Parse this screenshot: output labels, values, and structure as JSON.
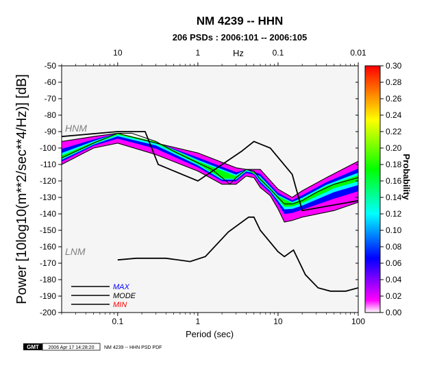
{
  "chart_data": {
    "type": "heatmap",
    "title": "NM 4239 -- HHN",
    "subtitle": "206 PSDs : 2006:101 -- 2006:105",
    "xlabel": "Period (sec)",
    "x_top_label": "Hz",
    "ylabel": "Power [10log10(m**2/sec**4/Hz)] [dB]",
    "colorbar_label": "Probability",
    "x_scale": "log",
    "xlim": [
      0.02,
      100
    ],
    "ylim": [
      -200,
      -50
    ],
    "x_ticks": [
      {
        "value": 0.1,
        "label": "0.1"
      },
      {
        "value": 1,
        "label": "1"
      },
      {
        "value": 10,
        "label": "10"
      },
      {
        "value": 100,
        "label": "100"
      }
    ],
    "x_top_ticks": [
      {
        "value": 0.1,
        "label": "10"
      },
      {
        "value": 1,
        "label": "1"
      },
      {
        "value": 10,
        "label": "0.1"
      },
      {
        "value": 100,
        "label": "0.01"
      }
    ],
    "y_ticks": [
      {
        "value": -50,
        "label": "-50"
      },
      {
        "value": -60,
        "label": "-60"
      },
      {
        "value": -70,
        "label": "-70"
      },
      {
        "value": -80,
        "label": "-80"
      },
      {
        "value": -90,
        "label": "-90"
      },
      {
        "value": -100,
        "label": "-100"
      },
      {
        "value": -110,
        "label": "-110"
      },
      {
        "value": -120,
        "label": "-120"
      },
      {
        "value": -130,
        "label": "-130"
      },
      {
        "value": -140,
        "label": "-140"
      },
      {
        "value": -150,
        "label": "-150"
      },
      {
        "value": -160,
        "label": "-160"
      },
      {
        "value": -170,
        "label": "-170"
      },
      {
        "value": -180,
        "label": "-180"
      },
      {
        "value": -190,
        "label": "-190"
      },
      {
        "value": -200,
        "label": "-200"
      }
    ],
    "colorbar": {
      "range": [
        0,
        0.3
      ],
      "ticks": [
        {
          "value": 0.3,
          "label": "0.30"
        },
        {
          "value": 0.28,
          "label": "0.28"
        },
        {
          "value": 0.26,
          "label": "0.26"
        },
        {
          "value": 0.24,
          "label": "0.24"
        },
        {
          "value": 0.22,
          "label": "0.22"
        },
        {
          "value": 0.2,
          "label": "0.20"
        },
        {
          "value": 0.18,
          "label": "0.18"
        },
        {
          "value": 0.16,
          "label": "0.16"
        },
        {
          "value": 0.14,
          "label": "0.14"
        },
        {
          "value": 0.12,
          "label": "0.12"
        },
        {
          "value": 0.1,
          "label": "0.10"
        },
        {
          "value": 0.08,
          "label": "0.08"
        },
        {
          "value": 0.06,
          "label": "0.06"
        },
        {
          "value": 0.04,
          "label": "0.04"
        },
        {
          "value": 0.02,
          "label": "0.02"
        },
        {
          "value": 0.0,
          "label": "0.00"
        }
      ],
      "colors": [
        "#ffffff",
        "#ff00ff",
        "#0000ff",
        "#00ffff",
        "#00ff00",
        "#ffff00",
        "#ff0000"
      ]
    },
    "series": [
      {
        "name": "MAX",
        "color": "#000000",
        "x": [
          0.02,
          0.05,
          0.1,
          0.3,
          1.0,
          3.0,
          4.0,
          6.0,
          10.0,
          15.0,
          20.0,
          40.0,
          100.0
        ],
        "y": [
          -96,
          -93,
          -91,
          -97,
          -103,
          -112,
          -113,
          -113,
          -125,
          -130,
          -126,
          -118,
          -108
        ]
      },
      {
        "name": "MODE",
        "color": "#000000",
        "x": [
          0.02,
          0.05,
          0.1,
          0.15,
          0.3,
          0.5,
          1.0,
          1.5,
          2.0,
          2.5,
          3.0,
          4.0,
          5.0,
          6.0,
          8.0,
          10.0,
          12.0,
          15.0,
          20.0,
          30.0,
          50.0,
          100.0
        ],
        "y": [
          -106,
          -97,
          -91,
          -91,
          -96,
          -102,
          -109,
          -113,
          -118,
          -122,
          -118,
          -113,
          -114,
          -119,
          -125,
          -130,
          -134,
          -134,
          -132,
          -127,
          -122,
          -118
        ]
      },
      {
        "name": "MIN",
        "color": "#000000",
        "x": [
          0.02,
          0.05,
          0.1,
          0.3,
          1.0,
          2.0,
          3.0,
          4.0,
          5.0,
          6.0,
          8.0,
          10.0,
          12.0,
          15.0,
          20.0,
          50.0,
          100.0
        ],
        "y": [
          -110,
          -100,
          -97,
          -104,
          -114,
          -122,
          -122,
          -117,
          -118,
          -124,
          -129,
          -137,
          -145,
          -144,
          -142,
          -138,
          -133
        ]
      },
      {
        "name": "HNM",
        "color": "#000000",
        "x": [
          0.02,
          0.1,
          0.22,
          0.32,
          1.0,
          3.5,
          5.0,
          8.0,
          15.0,
          20.0,
          100.0
        ],
        "y": [
          -93,
          -90,
          -90,
          -110,
          -120,
          -102,
          -96,
          -100,
          -116,
          -138,
          -132
        ]
      },
      {
        "name": "LNM",
        "color": "#000000",
        "x": [
          0.1,
          0.17,
          0.4,
          0.8,
          1.24,
          2.4,
          4.3,
          5.0,
          6.0,
          10.0,
          12.0,
          15.6,
          21.9,
          31.6,
          45.0,
          70.0,
          100.0
        ],
        "y": [
          -168,
          -167,
          -167,
          -169,
          -166,
          -151,
          -142,
          -142,
          -150,
          -163,
          -166,
          -162,
          -177,
          -185,
          -187,
          -187,
          -185
        ]
      }
    ],
    "legend": {
      "position": "bottom-left",
      "entries": [
        {
          "label": "MAX",
          "color": "#0000ff"
        },
        {
          "label": "MODE",
          "color": "#000000"
        },
        {
          "label": "MIN",
          "color": "#ff0000"
        }
      ]
    },
    "model_labels": {
      "hnm": "HNM",
      "lnm": "LNM"
    }
  },
  "footer": {
    "logo_text": "GMT",
    "timestamp": "2006 Apr 17 14:28:20",
    "caption": "NM 4239 -- HHN PSD PDF"
  }
}
